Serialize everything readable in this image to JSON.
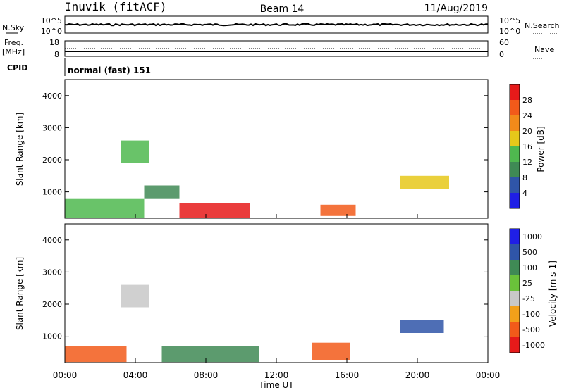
{
  "header": {
    "site": "Inuvik (fitACF)",
    "beam": "Beam 14",
    "date": "11/Aug/2019"
  },
  "top_panels": {
    "nsky_label": "N.Sky",
    "nsearch_label": "N.Search",
    "log_hi_left": "10^5",
    "log_lo_left": "10^0",
    "log_hi_right": "10^5",
    "log_lo_right": "10^0",
    "freq_label": "Freq.",
    "freq_unit": "[MHz]",
    "freq_hi": "18",
    "freq_lo": "8",
    "nave_label": "Nave",
    "nave_hi": "60",
    "nave_lo": "0",
    "cpid_label": "CPID",
    "cpid_value": "normal (fast) 151"
  },
  "colors": {
    "power": [
      "#1f1fe6",
      "#2f55a8",
      "#3f8a55",
      "#4fb84f",
      "#e6c81a",
      "#f28a1a",
      "#f25a1a",
      "#e61a1a"
    ],
    "velocity": [
      "#e61a1a",
      "#f25a1a",
      "#f2a01a",
      "#c8c8c8",
      "#6ac23a",
      "#3f8a55",
      "#2f55a8",
      "#1f1fe6"
    ]
  },
  "chart_data": [
    {
      "type": "heatmap",
      "name": "Power",
      "ylabel": "Slant Range [km]",
      "y_ticks": [
        "1000",
        "2000",
        "3000",
        "4000"
      ],
      "ylim": [
        180,
        4500
      ],
      "colorbar_label": "Power [dB]",
      "colorbar_ticks": [
        "4",
        "8",
        "12",
        "16",
        "20",
        "24",
        "28"
      ],
      "colorbar_range": [
        0,
        32
      ],
      "x_ticks": [
        "00:00",
        "04:00",
        "08:00",
        "12:00",
        "16:00",
        "20:00",
        "00:00"
      ],
      "xlim_hours": [
        0,
        24
      ],
      "regions": [
        {
          "t0": 0,
          "t1": 4.5,
          "r0": 200,
          "r1": 800,
          "value": 14
        },
        {
          "t0": 6.5,
          "t1": 10.5,
          "r0": 200,
          "r1": 650,
          "value": 30
        },
        {
          "t0": 14.5,
          "t1": 16.5,
          "r0": 250,
          "r1": 600,
          "value": 24
        },
        {
          "t0": 3.2,
          "t1": 4.8,
          "r0": 1900,
          "r1": 2600,
          "value": 14
        },
        {
          "t0": 19.0,
          "t1": 21.8,
          "r0": 1100,
          "r1": 1500,
          "value": 18
        },
        {
          "t0": 4.5,
          "t1": 6.5,
          "r0": 800,
          "r1": 1200,
          "value": 10
        }
      ]
    },
    {
      "type": "heatmap",
      "name": "Velocity",
      "ylabel": "Slant Range [km]",
      "y_ticks": [
        "1000",
        "2000",
        "3000",
        "4000"
      ],
      "ylim": [
        180,
        4500
      ],
      "colorbar_label": "Velocity [m s-1]",
      "colorbar_ticks": [
        "-1000",
        "-500",
        "-100",
        "-25",
        "25",
        "100",
        "500",
        "1000"
      ],
      "x_ticks": [
        "00:00",
        "04:00",
        "08:00",
        "12:00",
        "16:00",
        "20:00",
        "00:00"
      ],
      "xlabel": "Time UT",
      "xlim_hours": [
        0,
        24
      ],
      "regions": [
        {
          "t0": 0,
          "t1": 3.5,
          "r0": 200,
          "r1": 700,
          "value": -200
        },
        {
          "t0": 14.0,
          "t1": 16.2,
          "r0": 250,
          "r1": 800,
          "value": -200
        },
        {
          "t0": 3.2,
          "t1": 4.8,
          "r0": 1900,
          "r1": 2600,
          "value": 0
        },
        {
          "t0": 19.0,
          "t1": 21.5,
          "r0": 1100,
          "r1": 1500,
          "value": 600
        },
        {
          "t0": 5.5,
          "t1": 11,
          "r0": 200,
          "r1": 700,
          "value": 150
        }
      ]
    }
  ]
}
